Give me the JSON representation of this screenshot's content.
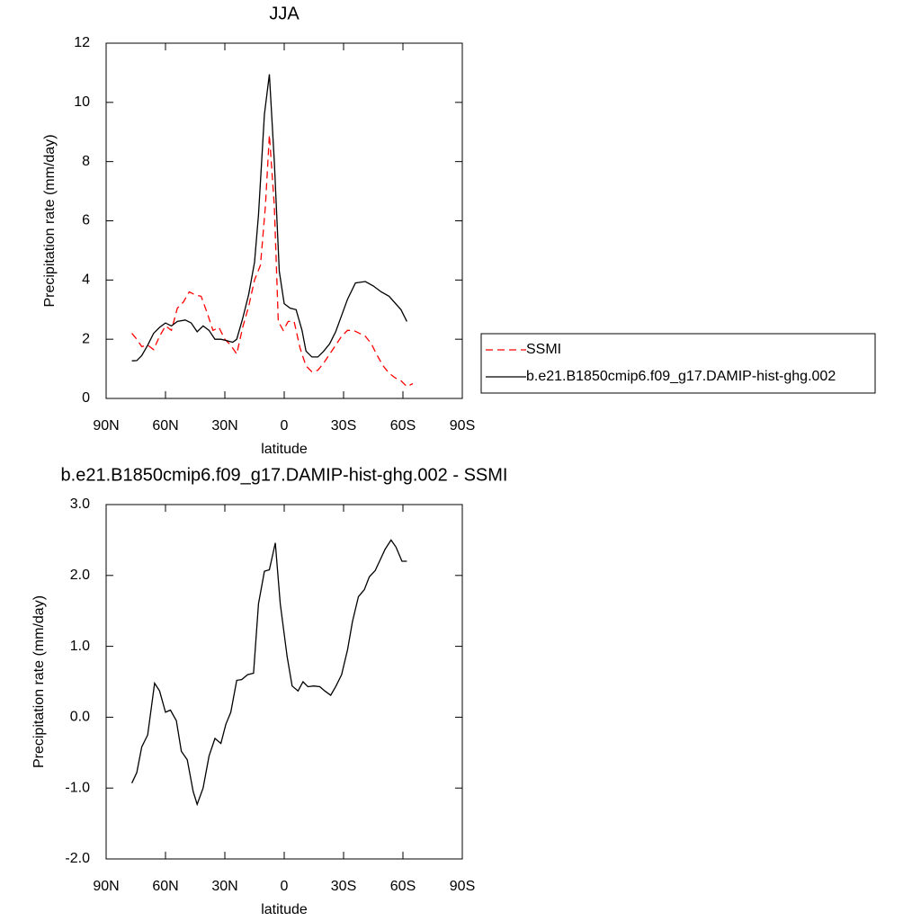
{
  "chart_data": [
    {
      "type": "line",
      "title": "JJA",
      "xlabel": "latitude",
      "ylabel": "Precipitation rate (mm/day)",
      "xlim": [
        90,
        -90
      ],
      "xticks": [
        {
          "value": 90,
          "label": "90N"
        },
        {
          "value": 60,
          "label": "60N"
        },
        {
          "value": 30,
          "label": "30N"
        },
        0,
        {
          "value": -30,
          "label": "30S"
        },
        {
          "value": -60,
          "label": "60S"
        },
        {
          "value": -90,
          "label": "90S"
        }
      ],
      "ylim": [
        0,
        12
      ],
      "yticks": [
        0,
        2,
        4,
        6,
        8,
        10,
        12
      ],
      "legend": "right",
      "series": [
        {
          "name": "SSMI",
          "color": "#ff0000",
          "dash": true,
          "x": [
            77,
            74.5,
            72,
            69,
            66,
            63,
            60,
            57,
            54,
            51,
            48,
            45,
            42,
            39,
            36,
            33,
            30,
            27,
            24,
            21,
            18,
            15,
            12,
            9.5,
            7.5,
            5,
            3,
            0.5,
            -2,
            -5,
            -8,
            -11,
            -14,
            -17,
            -20,
            -23,
            -26,
            -29,
            -32,
            -35,
            -38,
            -41,
            -44,
            -47,
            -50,
            -53,
            -56,
            -59,
            -62,
            -65
          ],
          "values": [
            2.2,
            2.0,
            1.75,
            1.8,
            1.65,
            2.1,
            2.45,
            2.3,
            3.05,
            3.25,
            3.6,
            3.5,
            3.45,
            2.9,
            2.3,
            2.4,
            2.0,
            1.8,
            1.5,
            2.4,
            3.1,
            4.0,
            4.5,
            6.5,
            8.9,
            6.5,
            2.6,
            2.3,
            2.6,
            2.6,
            1.7,
            1.1,
            0.9,
            0.95,
            1.2,
            1.5,
            1.8,
            2.1,
            2.3,
            2.3,
            2.2,
            2.1,
            1.85,
            1.45,
            1.1,
            0.85,
            0.7,
            0.6,
            0.4,
            0.5
          ]
        },
        {
          "name": "b.e21.B1850cmip6.f09_g17.DAMIP-hist-ghg.002",
          "color": "#000000",
          "dash": false,
          "x": [
            77,
            74.5,
            72,
            69,
            66,
            63,
            60,
            57,
            54,
            50,
            47,
            44,
            41,
            38,
            35,
            32,
            29,
            26,
            24,
            21,
            18,
            15,
            13,
            10,
            7.5,
            5,
            2.5,
            0,
            -3,
            -6,
            -9,
            -11,
            -14,
            -17,
            -20,
            -23,
            -26,
            -29,
            -32,
            -36,
            -41,
            -45,
            -49,
            -53,
            -59,
            -62
          ],
          "values": [
            1.27,
            1.28,
            1.45,
            1.8,
            2.2,
            2.4,
            2.55,
            2.45,
            2.6,
            2.65,
            2.55,
            2.25,
            2.45,
            2.3,
            2.0,
            2.0,
            1.95,
            1.9,
            2.0,
            2.7,
            3.5,
            4.6,
            6.2,
            9.6,
            10.95,
            8.0,
            4.3,
            3.2,
            3.05,
            3.0,
            2.3,
            1.6,
            1.4,
            1.4,
            1.6,
            1.85,
            2.25,
            2.8,
            3.35,
            3.9,
            3.95,
            3.8,
            3.6,
            3.45,
            3.0,
            2.6
          ]
        }
      ]
    },
    {
      "type": "line",
      "title": "b.e21.B1850cmip6.f09_g17.DAMIP-hist-ghg.002 - SSMI",
      "xlabel": "latitude",
      "ylabel": "Precipitation rate (mm/day)",
      "xlim": [
        90,
        -90
      ],
      "xticks": [
        {
          "value": 90,
          "label": "90N"
        },
        {
          "value": 60,
          "label": "60N"
        },
        {
          "value": 30,
          "label": "30N"
        },
        0,
        {
          "value": -30,
          "label": "30S"
        },
        {
          "value": -60,
          "label": "60S"
        },
        {
          "value": -90,
          "label": "90S"
        }
      ],
      "ylim": [
        -2,
        3
      ],
      "yticks": [
        {
          "value": -2,
          "label": "-2.0"
        },
        {
          "value": -1,
          "label": "-1.0"
        },
        {
          "value": 0,
          "label": "0.0"
        },
        {
          "value": 1,
          "label": "1.0"
        },
        {
          "value": 2,
          "label": "2.0"
        },
        {
          "value": 3,
          "label": "3.0"
        }
      ],
      "color": "#000000",
      "x": [
        77,
        74.5,
        72,
        69,
        65.5,
        63,
        60,
        57.5,
        54.5,
        52,
        49,
        46,
        44,
        41,
        38,
        35,
        32,
        29.5,
        27,
        24,
        21.5,
        18.5,
        15.5,
        13,
        10,
        7.5,
        4.5,
        2,
        -1.5,
        -4,
        -7,
        -9.5,
        -12,
        -15,
        -18,
        -20.5,
        -23.5,
        -26,
        -29,
        -32,
        -34.5,
        -37.5,
        -40.5,
        -43,
        -46,
        -48.5,
        -51,
        -54,
        -56.5,
        -59.5,
        -62
      ],
      "values": [
        -0.93,
        -0.78,
        -0.42,
        -0.25,
        0.48,
        0.37,
        0.07,
        0.1,
        -0.05,
        -0.48,
        -0.6,
        -1.05,
        -1.23,
        -1.0,
        -0.55,
        -0.3,
        -0.37,
        -0.1,
        0.07,
        0.52,
        0.53,
        0.6,
        0.62,
        1.6,
        2.06,
        2.08,
        2.46,
        1.6,
        0.85,
        0.44,
        0.37,
        0.5,
        0.43,
        0.44,
        0.43,
        0.37,
        0.31,
        0.43,
        0.6,
        0.95,
        1.35,
        1.7,
        1.8,
        1.98,
        2.07,
        2.22,
        2.37,
        2.5,
        2.4,
        2.2,
        2.2
      ]
    }
  ]
}
